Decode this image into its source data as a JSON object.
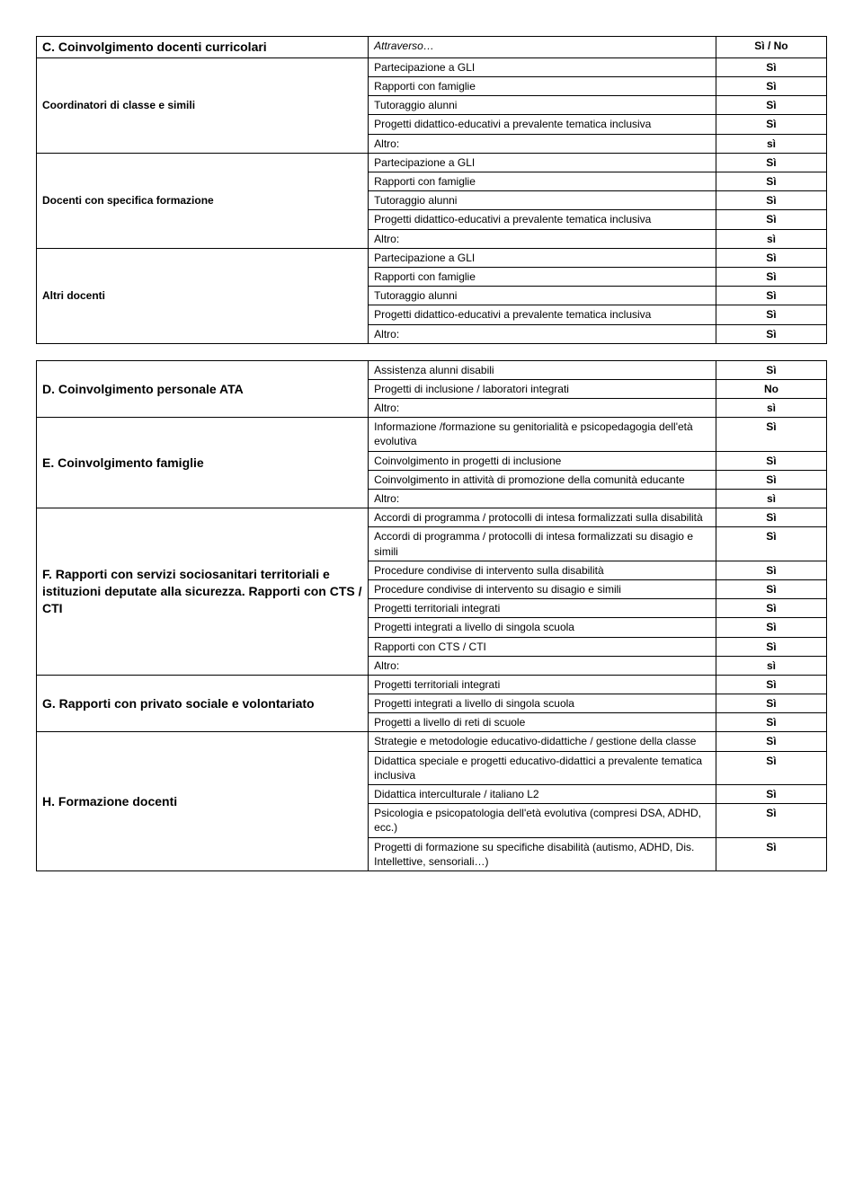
{
  "table1": {
    "header": {
      "left": "C. Coinvolgimento docenti curricolari",
      "mid": "Attraverso…",
      "right": "Sì / No"
    },
    "groups": [
      {
        "label": "Coordinatori di classe e simili",
        "rows": [
          {
            "item": "Partecipazione a GLI",
            "val": "Sì"
          },
          {
            "item": "Rapporti con famiglie",
            "val": "Sì"
          },
          {
            "item": "Tutoraggio alunni",
            "val": "Sì"
          },
          {
            "item": "Progetti didattico-educativi a prevalente tematica inclusiva",
            "val": "Sì"
          },
          {
            "item": "Altro:",
            "val": "sì"
          }
        ]
      },
      {
        "label": "Docenti con specifica formazione",
        "rows": [
          {
            "item": "Partecipazione a GLI",
            "val": "Sì"
          },
          {
            "item": "Rapporti con famiglie",
            "val": "Sì"
          },
          {
            "item": "Tutoraggio alunni",
            "val": "Sì"
          },
          {
            "item": "Progetti didattico-educativi a prevalente tematica inclusiva",
            "val": "Sì"
          },
          {
            "item": "Altro:",
            "val": "sì"
          }
        ]
      },
      {
        "label": "Altri docenti",
        "rows": [
          {
            "item": "Partecipazione a GLI",
            "val": "Sì"
          },
          {
            "item": "Rapporti con famiglie",
            "val": "Sì"
          },
          {
            "item": "Tutoraggio alunni",
            "val": "Sì"
          },
          {
            "item": "Progetti didattico-educativi a prevalente tematica inclusiva",
            "val": "Sì"
          },
          {
            "item": "Altro:",
            "val": "Sì"
          }
        ]
      }
    ]
  },
  "table2": {
    "groups": [
      {
        "label": "D. Coinvolgimento personale ATA",
        "big": true,
        "rows": [
          {
            "item": "Assistenza alunni disabili",
            "val": "Sì"
          },
          {
            "item": "Progetti di inclusione / laboratori integrati",
            "val": "No"
          },
          {
            "item": "Altro:",
            "val": "sì"
          }
        ]
      },
      {
        "label": "E. Coinvolgimento famiglie",
        "big": true,
        "rows": [
          {
            "item": "Informazione /formazione su genitorialità e psicopedagogia dell'età evolutiva",
            "val": "Sì"
          },
          {
            "item": "Coinvolgimento in progetti di inclusione",
            "val": "Sì"
          },
          {
            "item": "Coinvolgimento in attività di promozione della comunità educante",
            "val": "Sì"
          },
          {
            "item": "Altro:",
            "val": "sì"
          }
        ]
      },
      {
        "label": "F. Rapporti con servizi sociosanitari territoriali e istituzioni deputate alla sicurezza. Rapporti con CTS / CTI",
        "big": true,
        "rows": [
          {
            "item": "Accordi di programma / protocolli di intesa formalizzati sulla disabilità",
            "val": "Sì"
          },
          {
            "item": "Accordi di programma / protocolli di intesa formalizzati su disagio e simili",
            "val": "Sì"
          },
          {
            "item": "Procedure condivise di intervento sulla disabilità",
            "val": "Sì"
          },
          {
            "item": "Procedure condivise di intervento su disagio e simili",
            "val": "Sì"
          },
          {
            "item": "Progetti territoriali integrati",
            "val": "Sì"
          },
          {
            "item": "Progetti integrati a livello di singola scuola",
            "val": "Sì"
          },
          {
            "item": "Rapporti con CTS / CTI",
            "val": "Sì"
          },
          {
            "item": "Altro:",
            "val": "sì"
          }
        ]
      },
      {
        "label": "G. Rapporti con privato sociale e volontariato",
        "big": true,
        "rows": [
          {
            "item": "Progetti territoriali integrati",
            "val": "Sì"
          },
          {
            "item": "Progetti integrati a livello di singola scuola",
            "val": "Sì"
          },
          {
            "item": "Progetti a livello di reti di scuole",
            "val": "Sì"
          }
        ]
      },
      {
        "label": "H. Formazione docenti",
        "big": true,
        "rows": [
          {
            "item": "Strategie e metodologie educativo-didattiche / gestione della classe",
            "val": "Sì"
          },
          {
            "item": "Didattica speciale e progetti educativo-didattici a prevalente tematica inclusiva",
            "val": "Sì"
          },
          {
            "item": "Didattica interculturale / italiano L2",
            "val": "Sì"
          },
          {
            "item": "Psicologia e psicopatologia dell'età evolutiva (compresi DSA, ADHD, ecc.)",
            "val": "Sì"
          },
          {
            "item": "Progetti di formazione su specifiche disabilità (autismo, ADHD, Dis. Intellettive, sensoriali…)",
            "val": "Sì"
          }
        ]
      }
    ]
  }
}
